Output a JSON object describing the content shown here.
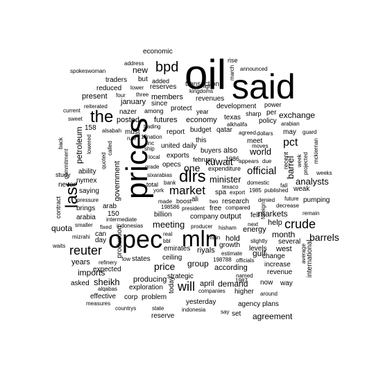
{
  "word_cloud": {
    "color": "#000000",
    "background": "#ffffff",
    "words": [
      {
        "t": "oil",
        "v": 100
      },
      {
        "t": "said",
        "v": 90
      },
      {
        "t": "prices",
        "v": 62
      },
      {
        "t": "opec",
        "v": 62
      },
      {
        "t": "mln",
        "v": 55
      },
      {
        "t": "dlrs",
        "v": 45
      },
      {
        "t": "last",
        "v": 40
      },
      {
        "t": "the",
        "v": 40
      },
      {
        "t": "market",
        "v": 36
      },
      {
        "t": "bpd",
        "v": 36
      },
      {
        "t": "reuter",
        "v": 34
      },
      {
        "t": "crude",
        "v": 32
      },
      {
        "t": "will",
        "v": 30
      },
      {
        "t": "barrels",
        "v": 26
      },
      {
        "t": "official",
        "v": 25
      },
      {
        "t": "pct",
        "v": 25
      },
      {
        "t": "kuwait",
        "v": 24
      },
      {
        "t": "one",
        "v": 24
      },
      {
        "t": "price",
        "v": 22
      },
      {
        "t": "new",
        "v": 22
      },
      {
        "t": "barrel",
        "v": 20
      },
      {
        "t": "world",
        "v": 20
      },
      {
        "t": "meeting",
        "v": 20
      },
      {
        "t": "minister",
        "v": 20
      },
      {
        "t": "sheikh",
        "v": 18
      },
      {
        "t": "government",
        "v": 18
      },
      {
        "t": "analysts",
        "v": 18
      },
      {
        "t": "petroleum",
        "v": 16
      },
      {
        "t": "group",
        "v": 16
      },
      {
        "t": "exchange",
        "v": 16
      },
      {
        "t": "years",
        "v": 16
      },
      {
        "t": "demand",
        "v": 16
      },
      {
        "t": "month",
        "v": 16
      },
      {
        "t": "international",
        "v": 14
      },
      {
        "t": "markets",
        "v": 16
      },
      {
        "t": "economy",
        "v": 16
      },
      {
        "t": "imports",
        "v": 16
      },
      {
        "t": "production",
        "v": 14
      },
      {
        "t": "gulf",
        "v": 16
      },
      {
        "t": "energy",
        "v": 16
      },
      {
        "t": "today",
        "v": 14
      },
      {
        "t": "futures",
        "v": 14
      },
      {
        "t": "members",
        "v": 14
      },
      {
        "t": "present",
        "v": 14
      },
      {
        "t": "report",
        "v": 14
      },
      {
        "t": "budget",
        "v": 14
      },
      {
        "t": "qatar",
        "v": 14
      },
      {
        "t": "hold",
        "v": 14
      },
      {
        "t": "riyals",
        "v": 14
      },
      {
        "t": "april",
        "v": 14
      },
      {
        "t": "yesterday",
        "v": 14
      },
      {
        "t": "reserves",
        "v": 14
      },
      {
        "t": "development",
        "v": 14
      },
      {
        "t": "also",
        "v": 14
      },
      {
        "t": "help",
        "v": 14
      },
      {
        "t": "according",
        "v": 14
      },
      {
        "t": "west",
        "v": 14
      },
      {
        "t": "increase",
        "v": 14
      },
      {
        "t": "revenue",
        "v": 14
      },
      {
        "t": "expected",
        "v": 14
      },
      {
        "t": "producing",
        "v": 14
      },
      {
        "t": "exploration",
        "v": 14
      },
      {
        "t": "effective",
        "v": 14
      },
      {
        "t": "output",
        "v": 14
      },
      {
        "t": "research",
        "v": 14
      },
      {
        "t": "billion",
        "v": 14
      },
      {
        "t": "company",
        "v": 14
      },
      {
        "t": "asked",
        "v": 14
      },
      {
        "t": "agency",
        "v": 14
      },
      {
        "t": "plans",
        "v": 14
      },
      {
        "t": "way",
        "v": 14
      },
      {
        "t": "now",
        "v": 14
      },
      {
        "t": "saying",
        "v": 14
      },
      {
        "t": "brings",
        "v": 14
      },
      {
        "t": "arabia",
        "v": 14
      },
      {
        "t": "ability",
        "v": 14
      },
      {
        "t": "posted",
        "v": 14
      },
      {
        "t": "january",
        "v": 14
      },
      {
        "t": "nazer",
        "v": 14
      },
      {
        "t": "traders",
        "v": 14
      },
      {
        "t": "reduced",
        "v": 14
      },
      {
        "t": "transaction",
        "v": 14
      },
      {
        "t": "revenues",
        "v": 14
      },
      {
        "t": "texas",
        "v": 14
      },
      {
        "t": "policy",
        "v": 14
      },
      {
        "t": "meet",
        "v": 14
      },
      {
        "t": "recent",
        "v": 14
      },
      {
        "t": "growth",
        "v": 14
      },
      {
        "t": "levels",
        "v": 14
      },
      {
        "t": "fell",
        "v": 14
      },
      {
        "t": "change",
        "v": 14
      },
      {
        "t": "sharp",
        "v": 12
      },
      {
        "t": "per",
        "v": 14
      },
      {
        "t": "power",
        "v": 12
      },
      {
        "t": "since",
        "v": 12
      },
      {
        "t": "among",
        "v": 12
      },
      {
        "t": "protect",
        "v": 12
      },
      {
        "t": "year",
        "v": 12
      },
      {
        "t": "high",
        "v": 10
      },
      {
        "t": "rise",
        "v": 12
      },
      {
        "t": "announced",
        "v": 10
      },
      {
        "t": "march",
        "v": 10
      },
      {
        "t": "added",
        "v": 12
      },
      {
        "t": "but",
        "v": 12
      },
      {
        "t": "spokeswoman",
        "v": 10
      },
      {
        "t": "address",
        "v": 10
      },
      {
        "t": "lower",
        "v": 10
      },
      {
        "t": "three",
        "v": 10
      },
      {
        "t": "four",
        "v": 10
      },
      {
        "t": "reiterated",
        "v": 10
      },
      {
        "t": "kingdoms",
        "v": 10
      },
      {
        "t": "current",
        "v": 10
      },
      {
        "t": "sweet",
        "v": 10
      },
      {
        "t": "alkhalifa",
        "v": 10
      },
      {
        "t": "arabian",
        "v": 10
      },
      {
        "t": "trading",
        "v": 10
      },
      {
        "t": "must",
        "v": 12
      },
      {
        "t": "158",
        "v": 12
      },
      {
        "t": "alsabah",
        "v": 10
      },
      {
        "t": "rule",
        "v": 10
      },
      {
        "t": "13nation",
        "v": 10
      },
      {
        "t": "inc",
        "v": 10
      },
      {
        "t": "ship",
        "v": 10
      },
      {
        "t": "local",
        "v": 10
      },
      {
        "t": "united",
        "v": 12
      },
      {
        "t": "daily",
        "v": 12
      },
      {
        "t": "buyers",
        "v": 12
      },
      {
        "t": "this",
        "v": 12
      },
      {
        "t": "february",
        "v": 12
      },
      {
        "t": "1986",
        "v": 12
      },
      {
        "t": "agreed",
        "v": 10
      },
      {
        "t": "dollars",
        "v": 10
      },
      {
        "t": "may",
        "v": 12
      },
      {
        "t": "guard",
        "v": 10
      },
      {
        "t": "moves",
        "v": 10
      },
      {
        "t": "appears",
        "v": 10
      },
      {
        "t": "due",
        "v": 10
      },
      {
        "t": "exports",
        "v": 12
      },
      {
        "t": "opecs",
        "v": 12
      },
      {
        "t": "grade",
        "v": 10
      },
      {
        "t": "sixarabias",
        "v": 10
      },
      {
        "t": "bank",
        "v": 10
      },
      {
        "t": "total",
        "v": 12
      },
      {
        "t": "york",
        "v": 10
      },
      {
        "t": "made",
        "v": 10
      },
      {
        "t": "boost",
        "v": 12
      },
      {
        "t": "198586",
        "v": 10
      },
      {
        "t": "president",
        "v": 10
      },
      {
        "t": "free",
        "v": 12
      },
      {
        "t": "compared",
        "v": 10
      },
      {
        "t": "texaco",
        "v": 10
      },
      {
        "t": "1985",
        "v": 10
      },
      {
        "t": "published",
        "v": 10
      },
      {
        "t": "export",
        "v": 10
      },
      {
        "t": "denied",
        "v": 10
      },
      {
        "t": "future",
        "v": 10
      },
      {
        "t": "pumping",
        "v": 12
      },
      {
        "t": "decrease",
        "v": 10
      },
      {
        "t": "remain",
        "v": 10
      },
      {
        "t": "weak",
        "v": 12
      },
      {
        "t": "weeks",
        "v": 10
      },
      {
        "t": "fall",
        "v": 10
      },
      {
        "t": "domestic",
        "v": 10
      },
      {
        "t": "ali",
        "v": 12
      },
      {
        "t": "two",
        "v": 10
      },
      {
        "t": "spa",
        "v": 12
      },
      {
        "t": "expenditure",
        "v": 12
      },
      {
        "t": "never",
        "v": 12
      },
      {
        "t": "nymex",
        "v": 12
      },
      {
        "t": "study",
        "v": 12
      },
      {
        "t": "contract",
        "v": 12
      },
      {
        "t": "pressure",
        "v": 10
      },
      {
        "t": "150",
        "v": 12
      },
      {
        "t": "arab",
        "v": 12
      },
      {
        "t": "smaller",
        "v": 10
      },
      {
        "t": "intermediate",
        "v": 10
      },
      {
        "t": "fixed",
        "v": 10
      },
      {
        "t": "indonesias",
        "v": 10
      },
      {
        "t": "quota",
        "v": 14
      },
      {
        "t": "waits",
        "v": 10
      },
      {
        "t": "can",
        "v": 12
      },
      {
        "t": "day",
        "v": 12
      },
      {
        "t": "mizrahi",
        "v": 10
      },
      {
        "t": "refinery",
        "v": 10
      },
      {
        "t": "low",
        "v": 10
      },
      {
        "t": "states",
        "v": 12
      },
      {
        "t": "real",
        "v": 10
      },
      {
        "t": "bbl",
        "v": 10
      },
      {
        "t": "emirates",
        "v": 12
      },
      {
        "t": "ceiling",
        "v": 12
      },
      {
        "t": "strategic",
        "v": 12
      },
      {
        "t": "main",
        "v": 10
      },
      {
        "t": "producer",
        "v": 10
      },
      {
        "t": "hisham",
        "v": 10
      },
      {
        "t": "estimate",
        "v": 10
      },
      {
        "t": "198788",
        "v": 10
      },
      {
        "t": "officials",
        "v": 10
      },
      {
        "t": "named",
        "v": 10
      },
      {
        "t": "1987",
        "v": 10
      },
      {
        "t": "next",
        "v": 10
      },
      {
        "t": "slightly",
        "v": 10
      },
      {
        "t": "several",
        "v": 12
      },
      {
        "t": "average",
        "v": 10
      },
      {
        "t": "alqabas",
        "v": 10
      },
      {
        "t": "corp",
        "v": 12
      },
      {
        "t": "problem",
        "v": 12
      },
      {
        "t": "companies",
        "v": 10
      },
      {
        "t": "higher",
        "v": 12
      },
      {
        "t": "around",
        "v": 10
      },
      {
        "t": "measures",
        "v": 10
      },
      {
        "t": "countrys",
        "v": 10
      },
      {
        "t": "state",
        "v": 10
      },
      {
        "t": "indonesia",
        "v": 10
      },
      {
        "t": "say",
        "v": 10
      },
      {
        "t": "set",
        "v": 12
      },
      {
        "t": "reserve",
        "v": 12
      },
      {
        "t": "economic",
        "v": 10
      },
      {
        "t": "agreement",
        "v": 12
      },
      {
        "t": "week",
        "v": 10
      },
      {
        "t": "projected",
        "v": 10
      },
      {
        "t": "mckiernan",
        "v": 10
      },
      {
        "t": "commitment",
        "v": 10
      },
      {
        "t": "quoted",
        "v": 10
      },
      {
        "t": "called",
        "v": 10
      },
      {
        "t": "lowered",
        "v": 10
      },
      {
        "t": "back",
        "v": 10
      },
      {
        "t": "foreign",
        "v": 10
      }
    ]
  }
}
